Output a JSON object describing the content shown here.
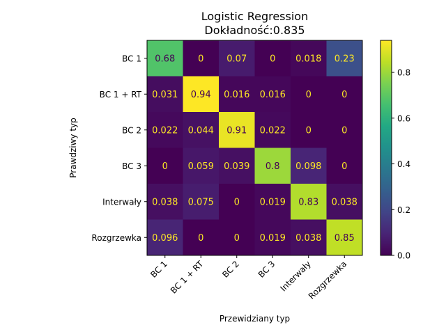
{
  "chart_data": {
    "type": "heatmap",
    "title": "Logistic Regression",
    "subtitle": "Dokładność:0.835",
    "xlabel": "Przewidziany typ",
    "ylabel": "Prawdziwy typ",
    "row_labels": [
      "BC 1",
      "BC 1 + RT",
      "BC 2",
      "BC 3",
      "Interwały",
      "Rozgrzewka"
    ],
    "col_labels": [
      "BC 1",
      "BC 1 + RT",
      "BC 2",
      "BC 3",
      "Interwały",
      "Rozgrzewka"
    ],
    "values": [
      [
        0.68,
        0,
        0.07,
        0,
        0.018,
        0.23
      ],
      [
        0.031,
        0.94,
        0.016,
        0.016,
        0,
        0
      ],
      [
        0.022,
        0.044,
        0.91,
        0.022,
        0,
        0
      ],
      [
        0,
        0.059,
        0.039,
        0.8,
        0.098,
        0
      ],
      [
        0.038,
        0.075,
        0,
        0.019,
        0.83,
        0.038
      ],
      [
        0.096,
        0,
        0,
        0.019,
        0.038,
        0.85
      ]
    ],
    "value_labels": [
      [
        "0.68",
        "0",
        "0.07",
        "0",
        "0.018",
        "0.23"
      ],
      [
        "0.031",
        "0.94",
        "0.016",
        "0.016",
        "0",
        "0"
      ],
      [
        "0.022",
        "0.044",
        "0.91",
        "0.022",
        "0",
        "0"
      ],
      [
        "0",
        "0.059",
        "0.039",
        "0.8",
        "0.098",
        "0"
      ],
      [
        "0.038",
        "0.075",
        "0",
        "0.019",
        "0.83",
        "0.038"
      ],
      [
        "0.096",
        "0",
        "0",
        "0.019",
        "0.038",
        "0.85"
      ]
    ],
    "colorbar": {
      "colormap": "viridis",
      "range": [
        0,
        0.94
      ],
      "ticks": [
        0.0,
        0.2,
        0.4,
        0.6,
        0.8
      ],
      "tick_labels": [
        "0.0",
        "0.2",
        "0.4",
        "0.6",
        "0.8"
      ]
    },
    "label_colors": {
      "on_dark": "#fde725",
      "on_light": "#440154"
    }
  }
}
